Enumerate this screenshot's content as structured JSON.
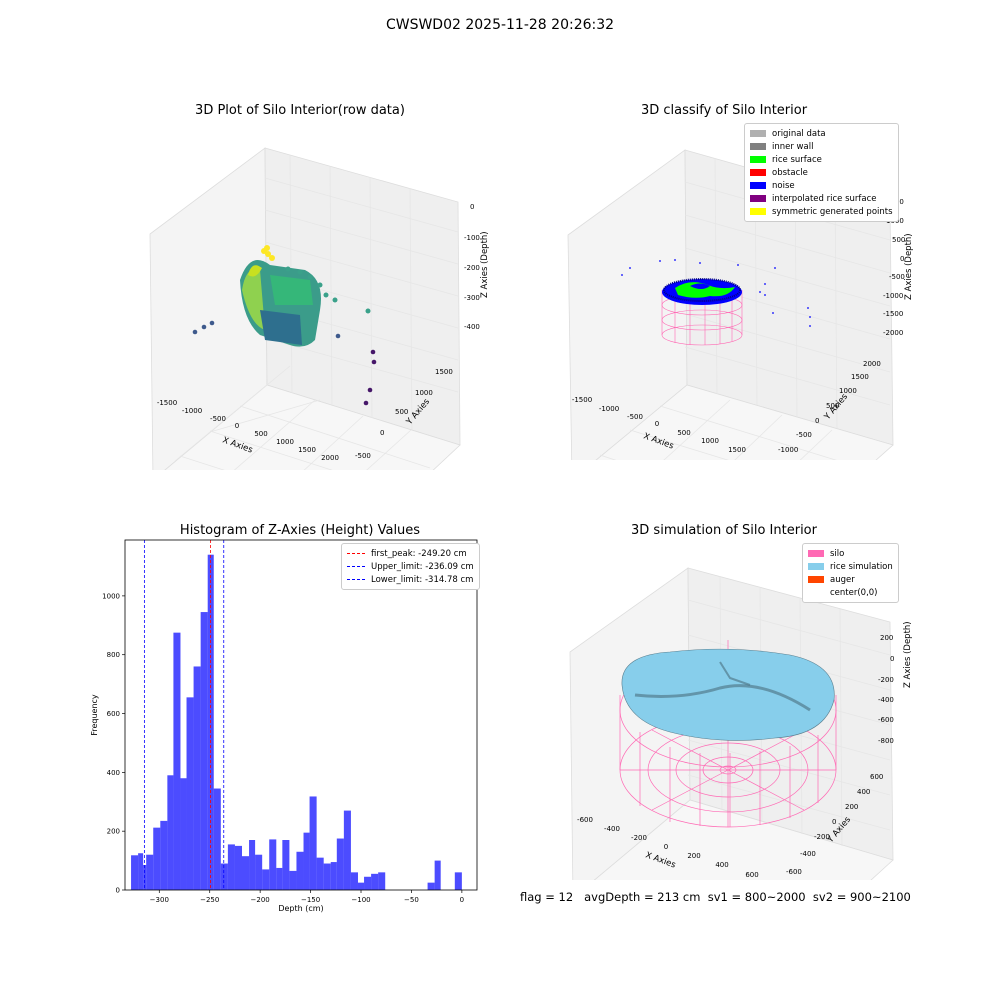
{
  "figure": {
    "suptitle": "CWSWD02 2025-11-28 20:26:32",
    "footer": "flag = 12   avgDepth = 213 cm  sv1 = 800~2000  sv2 = 900~2100"
  },
  "panels": {
    "raw": {
      "title": "3D Plot of Silo Interior(row data)",
      "xlabel": "X Axies",
      "ylabel": "Y Axies",
      "zlabel": "Z Axies (Depth)",
      "xticks": [
        "-1500",
        "-1000",
        "-500",
        "0",
        "500",
        "1000",
        "1500",
        "2000"
      ],
      "yticks": [
        "-500",
        "0",
        "500",
        "1000",
        "1500"
      ],
      "zticks": [
        "0",
        "-100",
        "-200",
        "-300",
        "-400"
      ]
    },
    "classify": {
      "title": "3D classify of Silo Interior",
      "xlabel": "X Axies",
      "ylabel": "Y Axies",
      "zlabel": "Z Axies (Depth)",
      "xticks": [
        "-1500",
        "-1000",
        "-500",
        "0",
        "500",
        "1000",
        "1500"
      ],
      "yticks": [
        "-1000",
        "-500",
        "0",
        "500",
        "1000",
        "1500",
        "2000"
      ],
      "zticks": [
        "1500",
        "1000",
        "500",
        "0",
        "-500",
        "-1000",
        "-1500",
        "-2000"
      ],
      "legend": [
        {
          "label": "original data",
          "color": "#b0b0b0"
        },
        {
          "label": "inner wall",
          "color": "#808080"
        },
        {
          "label": "rice surface",
          "color": "#00ff00"
        },
        {
          "label": "obstacle",
          "color": "#ff0000"
        },
        {
          "label": "noise",
          "color": "#0000ff"
        },
        {
          "label": "interpolated rice surface",
          "color": "#800080"
        },
        {
          "label": "symmetric generated points",
          "color": "#ffff00"
        }
      ]
    },
    "simulation": {
      "title": "3D simulation of Silo Interior",
      "xlabel": "X Axies",
      "ylabel": "Y Axies",
      "zlabel": "Z Axies (Depth)",
      "xticks": [
        "-600",
        "-400",
        "-200",
        "0",
        "200",
        "400",
        "600"
      ],
      "yticks": [
        "-600",
        "-400",
        "-200",
        "0",
        "200",
        "400",
        "600"
      ],
      "zticks": [
        "200",
        "0",
        "-200",
        "-400",
        "-600",
        "-800"
      ],
      "legend": [
        {
          "label": "silo",
          "color": "#ff69b4"
        },
        {
          "label": "rice simulation",
          "color": "#87ceeb"
        },
        {
          "label": "auger",
          "color": "#ff4500"
        },
        {
          "label": "center(0,0)",
          "color": "#ffffff"
        }
      ]
    }
  },
  "chart_data": {
    "type": "bar",
    "title": "Histogram of Z-Axies (Height) Values",
    "xlabel": "Depth (cm)",
    "ylabel": "Frequency",
    "xlim": [
      -334,
      15
    ],
    "ylim": [
      0,
      1190
    ],
    "xticks": [
      -300,
      -250,
      -200,
      -150,
      -100,
      -50,
      0
    ],
    "yticks": [
      0,
      200,
      400,
      600,
      800,
      1000
    ],
    "bar_color": "#0000ff",
    "bins": [
      [
        -328,
        -321,
        118
      ],
      [
        -321,
        -316,
        125
      ],
      [
        -316,
        -313,
        85
      ],
      [
        -313,
        -306,
        120
      ],
      [
        -306,
        -299,
        212
      ],
      [
        -299,
        -292,
        235
      ],
      [
        -292,
        -286,
        390
      ],
      [
        -286,
        -279,
        875
      ],
      [
        -279,
        -273,
        380
      ],
      [
        -273,
        -266,
        655
      ],
      [
        -266,
        -259,
        760
      ],
      [
        -259,
        -252,
        945
      ],
      [
        -252,
        -246,
        1140
      ],
      [
        -246,
        -239,
        345
      ],
      [
        -239,
        -232,
        90
      ],
      [
        -232,
        -225,
        155
      ],
      [
        -225,
        -218,
        150
      ],
      [
        -218,
        -211,
        115
      ],
      [
        -211,
        -205,
        170
      ],
      [
        -205,
        -198,
        120
      ],
      [
        -198,
        -191,
        70
      ],
      [
        -191,
        -184,
        172
      ],
      [
        -184,
        -178,
        75
      ],
      [
        -178,
        -171,
        170
      ],
      [
        -171,
        -164,
        65
      ],
      [
        -164,
        -157,
        130
      ],
      [
        -157,
        -151,
        195
      ],
      [
        -151,
        -144,
        318
      ],
      [
        -144,
        -137,
        110
      ],
      [
        -137,
        -130,
        90
      ],
      [
        -130,
        -124,
        95
      ],
      [
        -124,
        -117,
        175
      ],
      [
        -117,
        -110,
        270
      ],
      [
        -110,
        -103,
        60
      ],
      [
        -103,
        -97,
        25
      ],
      [
        -97,
        -90,
        45
      ],
      [
        -90,
        -83,
        55
      ],
      [
        -83,
        -76,
        60
      ],
      [
        -34,
        -27,
        25
      ],
      [
        -27,
        -21,
        100
      ],
      [
        -7,
        0,
        60
      ]
    ],
    "vlines": [
      {
        "label": "first_peak: -249.20 cm",
        "x": -249.2,
        "color": "#ff0000"
      },
      {
        "label": "Upper_limit: -236.09 cm",
        "x": -236.09,
        "color": "#0000ff"
      },
      {
        "label": "Lower_limit: -314.78 cm",
        "x": -314.78,
        "color": "#0000ff"
      }
    ]
  }
}
